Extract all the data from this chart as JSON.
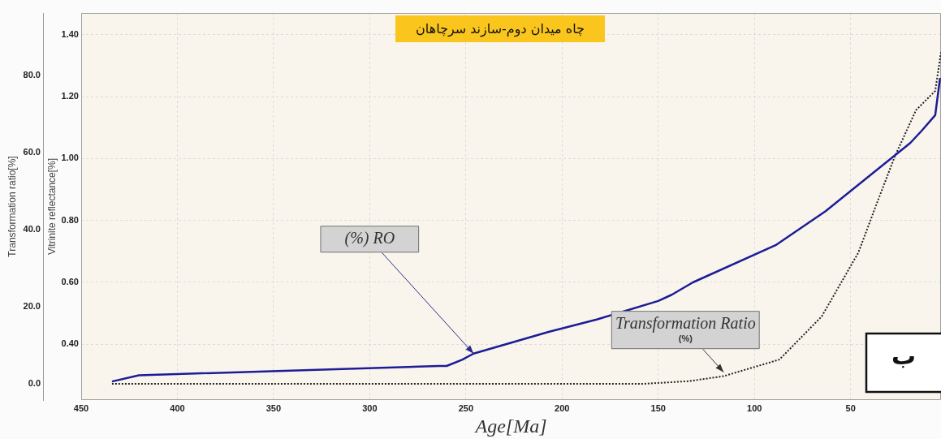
{
  "chart_data": {
    "type": "line",
    "title": "چاه میدان دوم-سازند سرچاهان",
    "xlabel": "Age[Ma]",
    "ylabel": "Vitrinite reflectance[%]",
    "y2label": "Transformation ratio[%]",
    "xlim": [
      450,
      3
    ],
    "xticks": [
      450,
      400,
      350,
      300,
      250,
      200,
      150,
      100,
      50
    ],
    "ylim": [
      0.22,
      1.47
    ],
    "yticks": [
      {
        "value": 0.4,
        "label": "0.40"
      },
      {
        "value": 0.6,
        "label": "0.60"
      },
      {
        "value": 0.8,
        "label": "0.80"
      },
      {
        "value": 1.0,
        "label": "1.00"
      },
      {
        "value": 1.2,
        "label": "1.20"
      },
      {
        "value": 1.4,
        "label": "1.40"
      }
    ],
    "y2lim": [
      -4.2,
      96.2
    ],
    "y2ticks": [
      {
        "value": 0,
        "label": "0.0"
      },
      {
        "value": 20,
        "label": "20.0"
      },
      {
        "value": 40,
        "label": "40.0"
      },
      {
        "value": 60,
        "label": "60.0"
      },
      {
        "value": 80,
        "label": "80.0"
      }
    ],
    "grid": true,
    "marker": "none",
    "series": [
      {
        "type": "line",
        "color": "#1c1c96",
        "line_style": "solid",
        "x": [
          434,
          420,
          264,
          260,
          252,
          246,
          207,
          182,
          150,
          143,
          132,
          89,
          63,
          27,
          19,
          13,
          6,
          3.5
        ],
        "values": [
          0.28,
          0.3,
          0.33,
          0.33,
          0.35,
          0.37,
          0.44,
          0.48,
          0.54,
          0.56,
          0.6,
          0.72,
          0.83,
          1.01,
          1.05,
          1.09,
          1.14,
          1.26
        ]
      },
      {
        "type": "line",
        "color": "#222222",
        "line_style": "dotted",
        "axis": "y2",
        "x": [
          434,
          158,
          134,
          116,
          87,
          65,
          46,
          37,
          27,
          16,
          6,
          3
        ],
        "values": [
          0,
          0,
          0.7,
          2,
          6.3,
          17.5,
          34,
          46,
          59,
          71,
          76,
          86
        ]
      }
    ],
    "annotations": [
      {
        "text": "(%) RO",
        "x": 246,
        "y": 0.37
      },
      {
        "text": "Transformation Ratio\n(%)",
        "x": 116,
        "y": 0.31
      },
      "ب"
    ]
  }
}
